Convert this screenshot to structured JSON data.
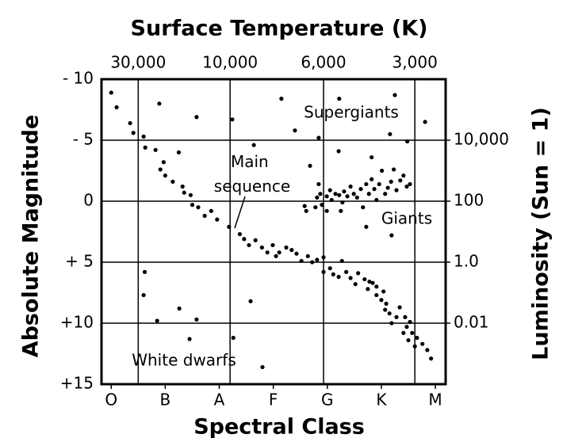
{
  "chart_data": {
    "type": "scatter",
    "x2label": "Surface Temperature (K)",
    "xlabel": "Spectral Class",
    "ylabel": "Absolute Magnitude",
    "y2label": "Luminosity (Sun = 1)",
    "xlim": [
      -0.18,
      6.19
    ],
    "xticks": [
      {
        "value": 0,
        "label": "O"
      },
      {
        "value": 1,
        "label": "B"
      },
      {
        "value": 2,
        "label": "A"
      },
      {
        "value": 3,
        "label": "F"
      },
      {
        "value": 4,
        "label": "G"
      },
      {
        "value": 5,
        "label": "K"
      },
      {
        "value": 6,
        "label": "M"
      }
    ],
    "x2ticks": [
      {
        "value": 30000,
        "label": "30,000",
        "x": 0.5
      },
      {
        "value": 10000,
        "label": "10,000",
        "x": 2.2
      },
      {
        "value": 6000,
        "label": "6,000",
        "x": 3.93
      },
      {
        "value": 3000,
        "label": "3,000",
        "x": 5.62
      }
    ],
    "ylim": [
      15,
      -10
    ],
    "yticks": [
      {
        "value": -10,
        "label": "- 10"
      },
      {
        "value": -5,
        "label": "- 5"
      },
      0,
      {
        "value": 5,
        "label": "+ 5"
      },
      {
        "value": 10,
        "label": "+10"
      },
      {
        "value": 15,
        "label": "+15"
      }
    ],
    "y2lim": [
      0.0001,
      1000000
    ],
    "y2scale": "log",
    "y2ticks": [
      {
        "value": 10000,
        "label": "10,000"
      },
      100,
      {
        "value": 1,
        "label": "1.0"
      },
      0.01
    ],
    "grid": true,
    "series": [
      {
        "name": "Main sequence",
        "color": "#000000",
        "x": [
          0.0,
          0.1,
          0.35,
          0.41,
          0.6,
          0.63,
          0.82,
          0.97,
          0.91,
          1.0,
          1.14,
          1.32,
          1.35,
          1.47,
          1.5,
          1.61,
          1.73,
          1.85,
          1.96,
          2.18,
          2.38,
          2.46,
          2.55,
          2.67,
          2.79,
          2.89,
          2.99,
          3.05,
          3.11,
          3.24,
          3.34,
          3.43,
          3.52,
          3.64,
          3.72,
          3.81,
          3.93,
          3.93,
          4.05,
          4.11,
          4.21,
          4.27,
          4.35,
          4.43,
          4.52,
          4.57,
          4.69,
          4.78,
          4.75,
          4.84,
          4.91,
          4.91,
          5.0,
          5.04,
          5.09,
          5.07,
          5.15,
          5.19,
          5.28,
          5.34,
          5.44,
          5.47,
          5.53,
          5.41,
          5.5,
          5.57,
          5.62,
          5.66,
          5.76,
          5.85,
          5.92
        ],
        "values": [
          -8.9,
          -7.7,
          -6.4,
          -5.6,
          -5.3,
          -4.4,
          -4.2,
          -3.2,
          -2.6,
          -2.1,
          -1.6,
          -1.2,
          -0.7,
          -0.5,
          0.3,
          0.5,
          1.2,
          0.8,
          1.5,
          2.1,
          2.7,
          3.1,
          3.6,
          3.2,
          3.8,
          4.2,
          3.6,
          4.5,
          4.2,
          3.8,
          4.0,
          4.3,
          4.9,
          4.5,
          5.0,
          4.8,
          4.6,
          5.8,
          5.5,
          6.0,
          6.2,
          4.9,
          5.8,
          6.3,
          6.8,
          5.9,
          6.4,
          6.6,
          7.2,
          6.7,
          7.0,
          7.7,
          8.1,
          7.4,
          8.4,
          8.9,
          9.2,
          10.0,
          9.5,
          8.7,
          9.5,
          10.3,
          9.9,
          10.8,
          11.4,
          10.8,
          11.9,
          11.2,
          11.7,
          12.2,
          12.9
        ]
      },
      {
        "name": "Giants",
        "color": "#000000",
        "x": [
          3.58,
          3.61,
          3.78,
          3.81,
          3.87,
          3.9,
          3.99,
          4.05,
          4.08,
          4.15,
          4.22,
          4.28,
          4.31,
          4.37,
          4.43,
          4.49,
          4.55,
          4.62,
          4.66,
          4.72,
          4.77,
          4.82,
          4.87,
          4.91,
          4.96,
          5.01,
          5.07,
          5.12,
          5.18,
          5.23,
          5.28,
          5.35,
          5.41,
          5.47,
          5.53,
          3.99,
          4.25,
          4.72,
          5.19,
          3.84,
          3.68
        ],
        "values": [
          0.4,
          0.8,
          0.5,
          -0.3,
          -0.6,
          0.3,
          -0.4,
          -0.9,
          -0.1,
          -0.6,
          -0.5,
          0.1,
          -0.8,
          -0.4,
          -1.2,
          -0.6,
          -0.3,
          -1.0,
          0.5,
          -1.4,
          -0.6,
          -1.8,
          -1.0,
          -0.1,
          -1.4,
          -2.5,
          -0.6,
          -1.1,
          -1.6,
          -2.6,
          -0.9,
          -1.7,
          -2.1,
          -1.2,
          -1.4,
          0.8,
          0.8,
          2.1,
          2.8,
          -1.4,
          -2.9
        ]
      },
      {
        "name": "Supergiants",
        "color": "#000000",
        "x": [
          0.89,
          1.58,
          2.24,
          3.15,
          2.64,
          3.4,
          3.84,
          4.22,
          4.21,
          4.82,
          5.16,
          5.25,
          5.48,
          5.81,
          1.25
        ],
        "values": [
          -8.0,
          -6.9,
          -6.7,
          -8.4,
          -4.6,
          -5.8,
          -5.2,
          -8.4,
          -4.1,
          -3.6,
          -5.5,
          -8.7,
          -4.9,
          -6.5,
          -4.0
        ]
      },
      {
        "name": "White dwarfs",
        "color": "#000000",
        "x": [
          0.62,
          0.6,
          0.85,
          1.26,
          1.58,
          1.45,
          2.26,
          2.58,
          2.8
        ],
        "values": [
          5.8,
          7.7,
          9.8,
          8.8,
          9.7,
          11.3,
          11.2,
          8.2,
          13.6
        ]
      }
    ]
  }
}
